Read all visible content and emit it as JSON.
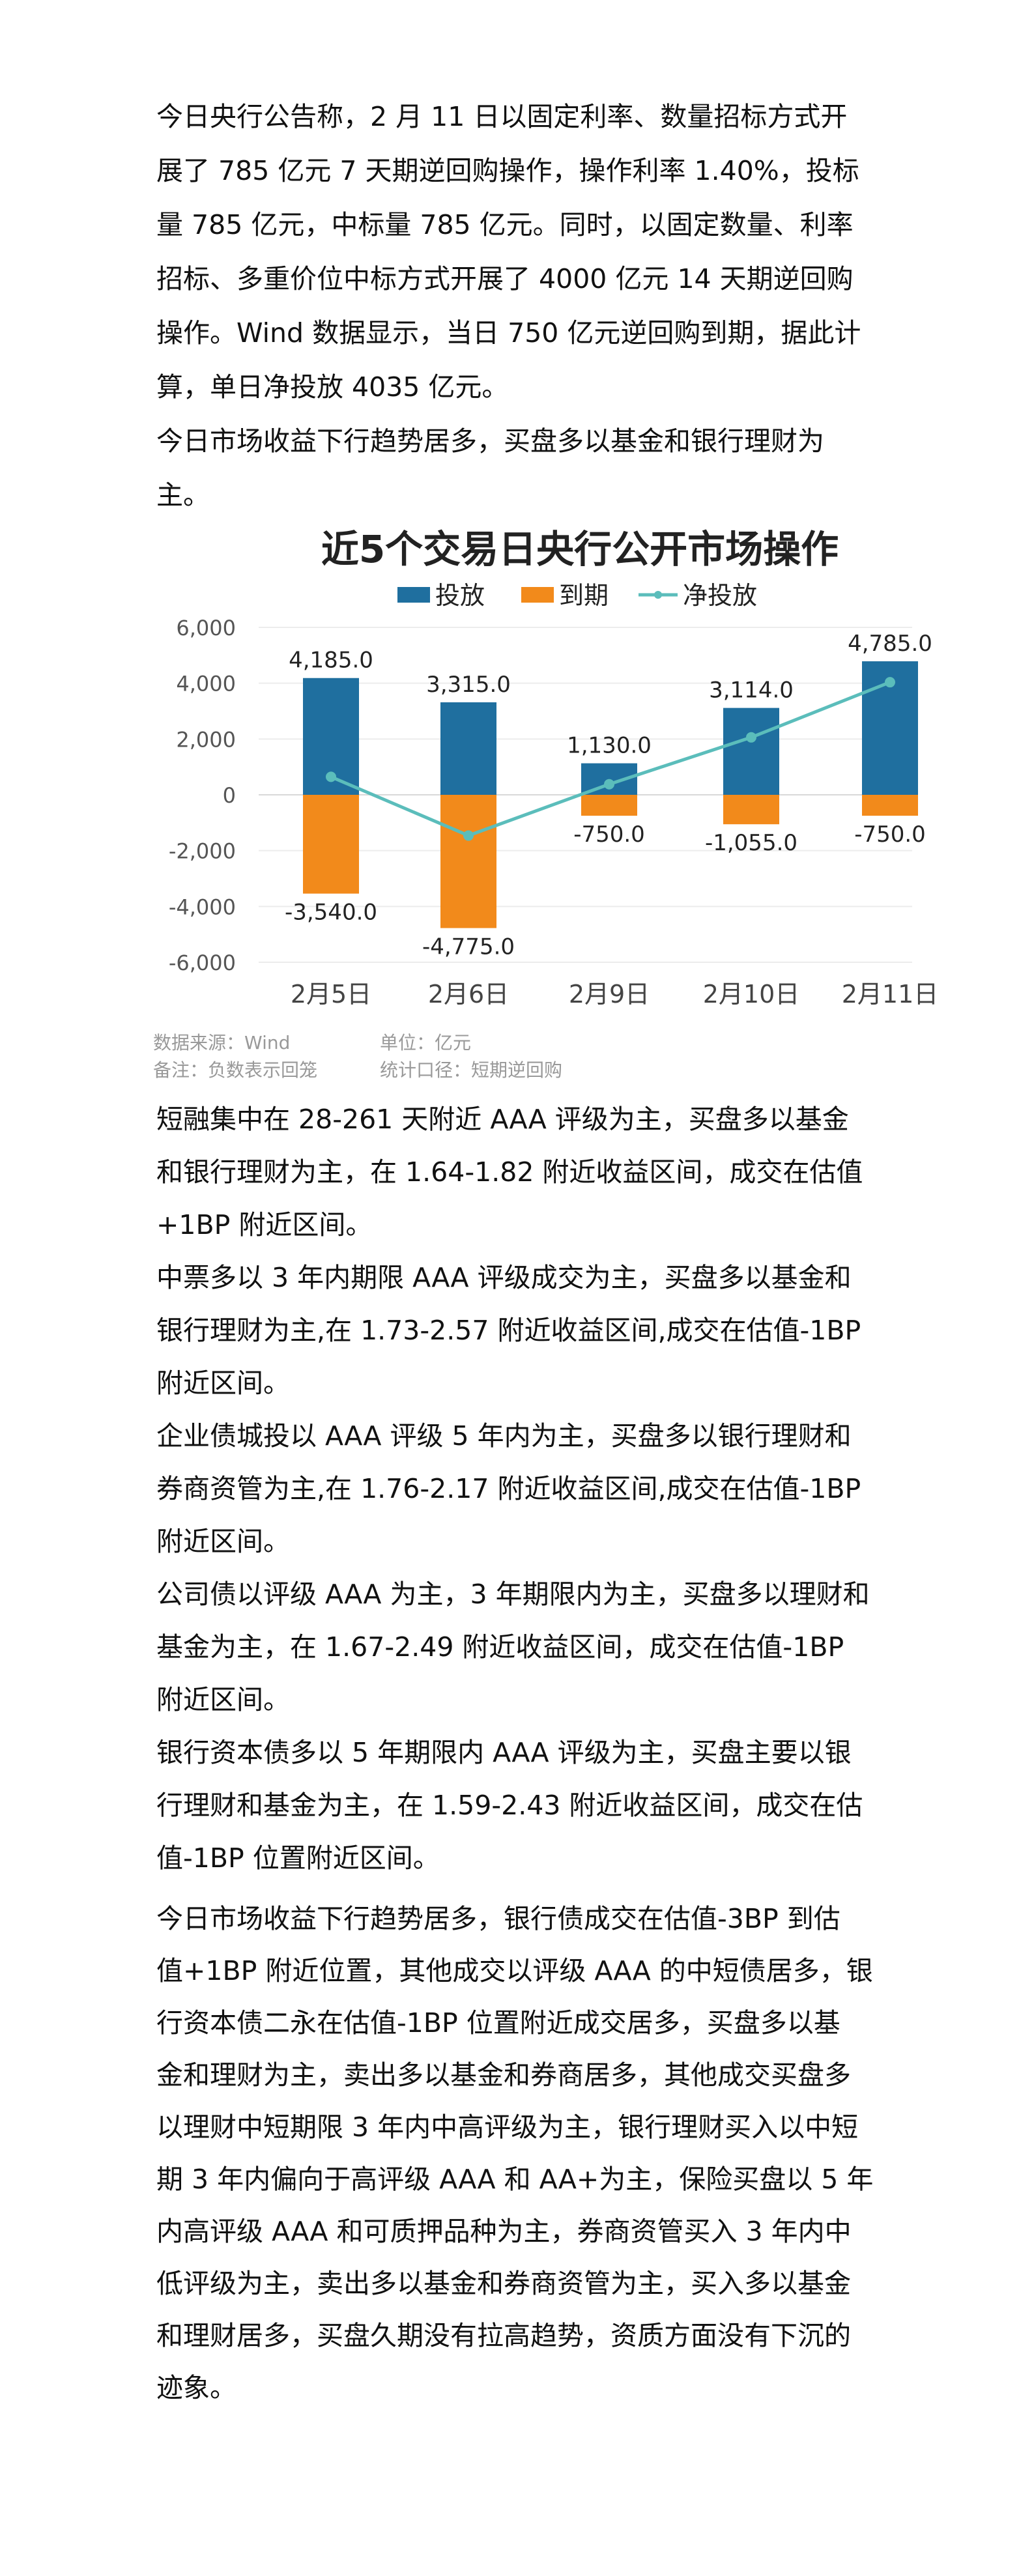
{
  "paragraphs_top": [
    {
      "lines": [
        "今日央行公告称，2 月 11 日以固定利率、数量招标方式开",
        "展了 785 亿元 7 天期逆回购操作，操作利率 1.40%，投标",
        "量 785 亿元，中标量 785 亿元。同时，以固定数量、利率",
        "招标、多重价位中标方式开展了 4000 亿元 14 天期逆回购",
        "操作。Wind 数据显示，当日 750 亿元逆回购到期，据此计",
        "算，单日净投放 4035 亿元。"
      ]
    },
    {
      "lines": [
        "今日市场收益下行趋势居多，买盘多以基金和银行理财为",
        "主。"
      ]
    }
  ],
  "paragraphs_bottom": [
    {
      "lines": [
        "短融集中在 28-261 天附近 AAA 评级为主，买盘多以基金",
        "和银行理财为主，在 1.64-1.82 附近收益区间，成交在估值",
        "+1BP 附近区间。"
      ]
    },
    {
      "lines": [
        "中票多以 3 年内期限 AAA 评级成交为主，买盘多以基金和",
        "银行理财为主,在 1.73-2.57 附近收益区间,成交在估值-1BP",
        "附近区间。"
      ]
    },
    {
      "lines": [
        "企业债城投以 AAA 评级 5 年内为主，买盘多以银行理财和",
        "券商资管为主,在 1.76-2.17 附近收益区间,成交在估值-1BP",
        "附近区间。"
      ]
    },
    {
      "lines": [
        "公司债以评级 AAA 为主，3 年期限内为主，买盘多以理财和",
        "基金为主，在 1.67-2.49 附近收益区间，成交在估值-1BP",
        "附近区间。"
      ]
    },
    {
      "lines": [
        "银行资本债多以 5 年期限内 AAA 评级为主，买盘主要以银",
        "行理财和基金为主，在 1.59-2.43 附近收益区间，成交在估",
        "值-1BP 位置附近区间。"
      ]
    }
  ],
  "paragraph_last": {
    "lines": [
      "今日市场收益下行趋势居多，银行债成交在估值-3BP 到估",
      "值+1BP 附近位置，其他成交以评级 AAA 的中短债居多，银",
      "行资本债二永在估值-1BP 位置附近成交居多，买盘多以基",
      "金和理财为主，卖出多以基金和券商居多，其他成交买盘多",
      "以理财中短期限 3 年内中高评级为主，银行理财买入以中短",
      "期 3 年内偏向于高评级 AAA 和 AA+为主，保险买盘以 5 年",
      "内高评级 AAA 和可质押品种为主，券商资管买入 3 年内中",
      "低评级为主，卖出多以基金和券商资管为主，买入多以基金",
      "和理财居多，买盘久期没有拉高趋势，资质方面没有下沉的",
      "迹象。"
    ]
  },
  "chart_data": {
    "type": "bar",
    "title": "近5个交易日央行公开市场操作",
    "categories": [
      "2月5日",
      "2月6日",
      "2月9日",
      "2月10日",
      "2月11日"
    ],
    "series": [
      {
        "name": "投放",
        "kind": "bar",
        "color": "#1f6f9f",
        "values": [
          4185.0,
          3315.0,
          1130.0,
          3114.0,
          4785.0
        ],
        "labels": [
          "4,185.0",
          "3,315.0",
          "1,130.0",
          "3,114.0",
          "4,785.0"
        ]
      },
      {
        "name": "到期",
        "kind": "bar",
        "color": "#f28a1b",
        "values": [
          -3540.0,
          -4775.0,
          -750.0,
          -1055.0,
          -750.0
        ],
        "labels": [
          "-3,540.0",
          "-4,775.0",
          "-750.0",
          "-1,055.0",
          "-750.0"
        ]
      },
      {
        "name": "净投放",
        "kind": "line",
        "color": "#5bbdbb",
        "values": [
          645,
          -1460,
          380,
          2059,
          4035
        ]
      }
    ],
    "yticks": [
      "6,000",
      "4,000",
      "2,000",
      "0",
      "-2,000",
      "-4,000",
      "-6,000"
    ],
    "ylim": [
      -6000,
      6000
    ],
    "grid": true,
    "legend": "top",
    "footnotes": [
      [
        "数据来源：Wind",
        "单位：亿元"
      ],
      [
        "备注：负数表示回笼",
        "统计口径：短期逆回购"
      ]
    ]
  }
}
